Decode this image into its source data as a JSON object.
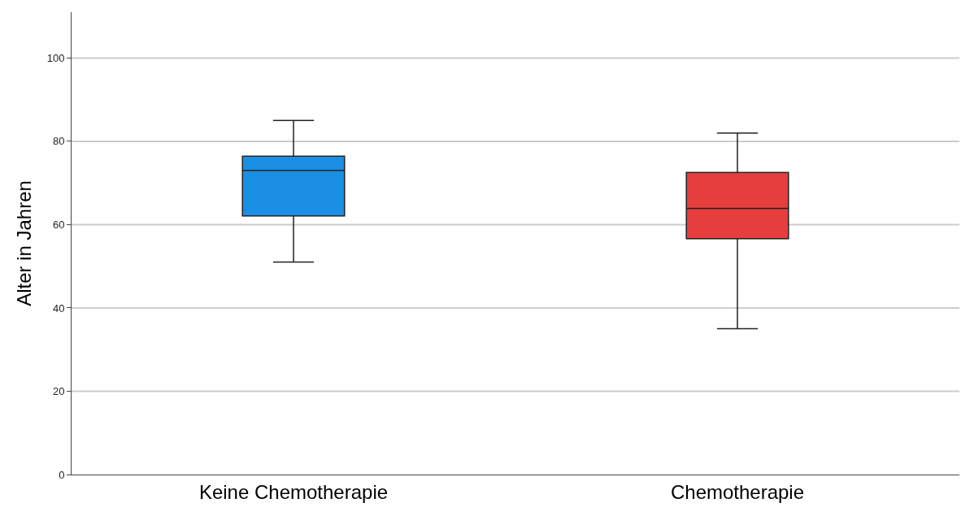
{
  "chart_data": {
    "type": "box",
    "ylabel": "Alter in Jahren",
    "categories": [
      "Keine Chemotherapie",
      "Chemotherapie"
    ],
    "boxes": [
      {
        "low": 51,
        "q1": 62.1,
        "median": 73,
        "q3": 76.4,
        "high": 85
      },
      {
        "low": 35,
        "q1": 56.6,
        "median": 63.9,
        "q3": 72.5,
        "high": 82
      }
    ],
    "colors": [
      "#1a8fe3",
      "#e53e3c"
    ],
    "ylim": [
      0,
      111
    ],
    "yticks": [
      0,
      20,
      40,
      60,
      80,
      100
    ],
    "grid": "y",
    "legend": false
  }
}
